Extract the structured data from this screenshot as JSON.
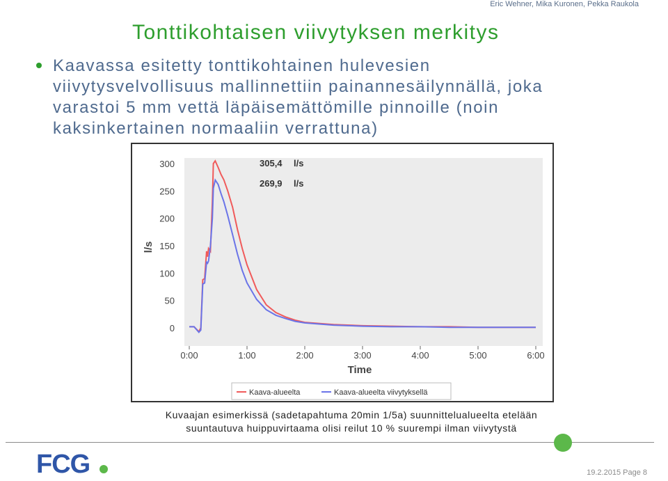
{
  "header": {
    "author": "Eric Wehner, Mika Kuronen, Pekka Raukola",
    "title": "Tonttikohtaisen viivytyksen merkitys"
  },
  "bullet": {
    "text": "Kaavassa esitetty tonttikohtainen hulevesien viivytysvelvollisuus mallinnettiin painannesäilynnällä, joka varastoi 5 mm vettä läpäisemättömille pinnoille (noin kaksinkertainen normaaliin verrattuna)"
  },
  "caption": {
    "line1": "Kuvaajan esimerkissä (sadetapahtuma 20min 1/5a) suunnittelualueelta etelään",
    "line2": "suuntautuva huippuvirtaama olisi reilut 10 % suurempi ilman viivytystä"
  },
  "footer": {
    "logo": "FCG",
    "date_page": "19.2.2015  Page 8"
  },
  "colors": {
    "title_green": "#2e9e2e",
    "body_blue": "#4f6a8e",
    "series_red": "#f05a5a",
    "series_blue": "#6a74e8",
    "plot_bg": "#ececec"
  },
  "chart_data": {
    "type": "line",
    "xlabel": "Time",
    "ylabel": "l/s",
    "xlim": [
      0,
      360
    ],
    "ylim": [
      0,
      300
    ],
    "x_ticks": [
      "0:00",
      "1:00",
      "2:00",
      "3:00",
      "4:00",
      "5:00",
      "6:00"
    ],
    "y_ticks": [
      "0",
      "50",
      "100",
      "150",
      "200",
      "250",
      "300"
    ],
    "annotations": [
      {
        "value": "305,4",
        "unit": "l/s"
      },
      {
        "value": "269,9",
        "unit": "l/s"
      }
    ],
    "legend_position": "bottom",
    "series": [
      {
        "name": "Kaava-alueelta",
        "color": "#f05a5a",
        "x": [
          0,
          5,
          10,
          12,
          14,
          16,
          18,
          19,
          20,
          22,
          24,
          25,
          27,
          30,
          33,
          36,
          40,
          45,
          50,
          55,
          60,
          70,
          80,
          90,
          100,
          110,
          120,
          150,
          180,
          210,
          240,
          270,
          300,
          330,
          360
        ],
        "y": [
          2,
          2,
          -7,
          0,
          88,
          90,
          140,
          130,
          145,
          140,
          230,
          300,
          305,
          293,
          280,
          270,
          250,
          220,
          180,
          145,
          115,
          70,
          42,
          28,
          20,
          14,
          10,
          6,
          4,
          3,
          2,
          2,
          1,
          1,
          1
        ]
      },
      {
        "name": "Kaava-alueelta viivytyksellä",
        "color": "#6a74e8",
        "x": [
          0,
          5,
          10,
          12,
          14,
          16,
          18,
          19,
          20,
          22,
          24,
          25,
          27,
          30,
          33,
          36,
          40,
          45,
          50,
          55,
          60,
          70,
          80,
          90,
          100,
          110,
          120,
          150,
          180,
          210,
          240,
          270,
          300,
          330,
          360
        ],
        "y": [
          2,
          2,
          -8,
          -4,
          80,
          82,
          120,
          118,
          122,
          150,
          200,
          255,
          270,
          262,
          245,
          230,
          205,
          170,
          135,
          105,
          82,
          52,
          33,
          23,
          17,
          12,
          9,
          5,
          3,
          2,
          2,
          1,
          1,
          1,
          1
        ]
      }
    ]
  }
}
